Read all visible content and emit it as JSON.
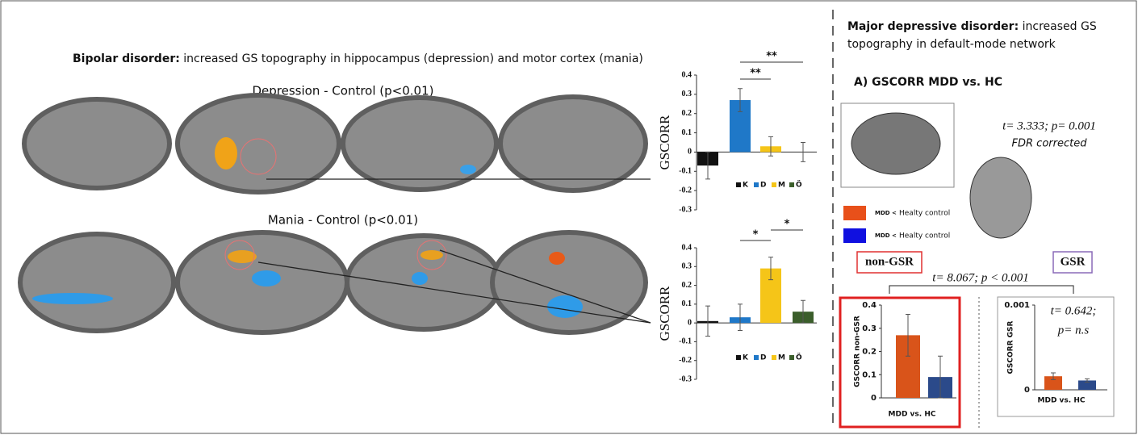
{
  "bipolar": {
    "title_bold": "Bipolar disorder:",
    "title_rest": "increased GS topography in hippocampus (depression) and motor cortex (mania)",
    "depression_label": "Depression - Control (p<0.01)",
    "mania_label": "Mania - Control (p<0.01)"
  },
  "mdd": {
    "title_bold": "Major depressive disorder:",
    "title_rest": "increased GS",
    "title_line2": "topography in default-mode network",
    "panel_a": "A) GSCORR MDD vs. HC",
    "stat": "t= 3.333; p= 0.001",
    "stat_note": "FDR corrected",
    "legend": [
      {
        "small": "MDD <",
        "label": "Healty control",
        "color": "#e8501a"
      },
      {
        "small": "MDD <",
        "label": "Healty control",
        "color": "#1010e0"
      }
    ],
    "non_gsr": "non-GSR",
    "gsr": "GSR",
    "comparison": "t= 8.067; p < 0.001",
    "gsr_stat_1": "t= 0.642;",
    "gsr_stat_2": "p= n.s"
  },
  "chart_data": [
    {
      "type": "bar",
      "ylabel": "GSCORR",
      "categories": [
        "K",
        "D",
        "M",
        "Ö"
      ],
      "values": [
        -0.07,
        0.27,
        0.03,
        0
      ],
      "errors": [
        0.07,
        0.06,
        0.05,
        0.05
      ],
      "colors": [
        "#111111",
        "#1f78c8",
        "#f5c518",
        "#3b5e2b"
      ],
      "ylim": [
        -0.3,
        0.4
      ],
      "yticks": [
        -0.3,
        -0.2,
        -0.1,
        0,
        0.1,
        0.2,
        0.3,
        0.4
      ],
      "annotations": [
        "**",
        "**"
      ]
    },
    {
      "type": "bar",
      "ylabel": "GSCORR",
      "categories": [
        "K",
        "D",
        "M",
        "Ö"
      ],
      "values": [
        0.01,
        0.03,
        0.29,
        0.06
      ],
      "errors": [
        0.08,
        0.07,
        0.06,
        0.06
      ],
      "colors": [
        "#111111",
        "#1f78c8",
        "#f5c518",
        "#3b5e2b"
      ],
      "ylim": [
        -0.3,
        0.4
      ],
      "yticks": [
        -0.3,
        -0.2,
        -0.1,
        0,
        0.1,
        0.2,
        0.3,
        0.4
      ],
      "annotations": [
        "*",
        "*"
      ]
    },
    {
      "type": "bar",
      "ylabel": "GSCORR non-GSR",
      "xlabel": "MDD vs. HC",
      "values": [
        0.27,
        0.09
      ],
      "errors": [
        0.09,
        0.09
      ],
      "colors": [
        "#d9541a",
        "#2b4a8a"
      ],
      "ylim": [
        0,
        0.4
      ],
      "yticks": [
        0,
        0.1,
        0.2,
        0.3,
        0.4
      ]
    },
    {
      "type": "bar",
      "ylabel": "GSCORR GSR",
      "xlabel": "MDD vs. HC",
      "values": [
        0.00016,
        0.00011
      ],
      "errors": [
        4e-05,
        2e-05
      ],
      "colors": [
        "#d9541a",
        "#2b4a8a"
      ],
      "ylim": [
        0,
        0.001
      ],
      "yticks": [
        0,
        0.001
      ]
    }
  ]
}
